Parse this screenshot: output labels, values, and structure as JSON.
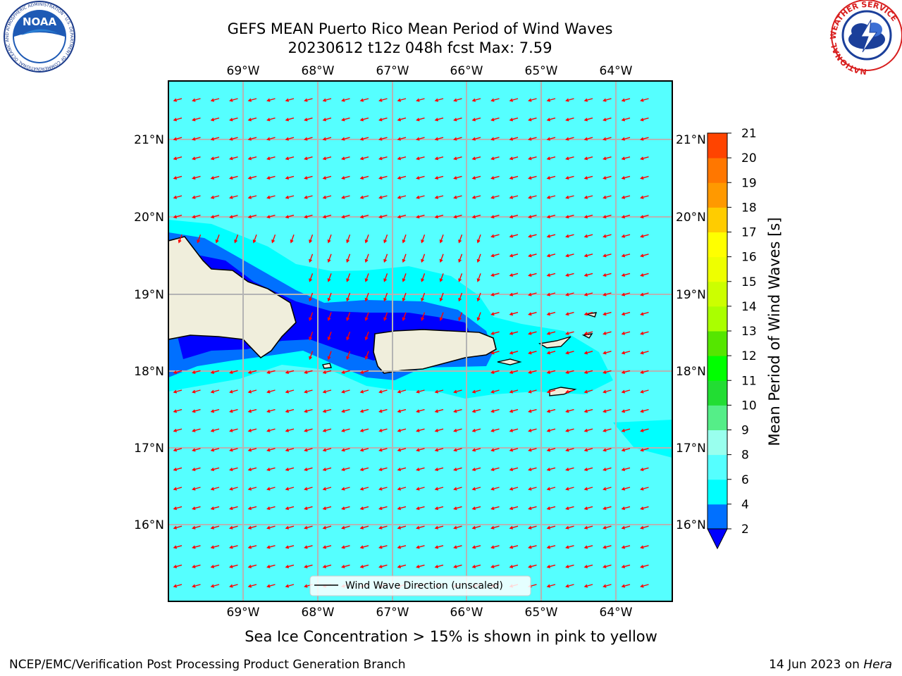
{
  "header": {
    "title_line1": "GEFS MEAN Puerto Rico Mean Period of Wind Waves",
    "title_line2": "20230612 t12z 048h fcst   Max: 7.59"
  },
  "logos": {
    "left": {
      "name": "NOAA",
      "text": "NOAA",
      "ring_text": "NATIONAL OCEANIC AND ATMOSPHERIC ADMINISTRATION · U.S. DEPARTMENT OF COMMERCE"
    },
    "right": {
      "name": "National Weather Service",
      "ring_text": "NATIONAL WEATHER SERVICE"
    }
  },
  "map": {
    "lon_labels": [
      "69°W",
      "68°W",
      "67°W",
      "66°W",
      "65°W",
      "64°W"
    ],
    "lat_labels": [
      "21°N",
      "20°N",
      "19°N",
      "18°N",
      "17°N",
      "16°N"
    ],
    "grid": true,
    "ocean_color": "#55ffff",
    "land_color": "#f0eedc",
    "arrow_color": "#ff0000",
    "legend_label": "Wind Wave Direction (unscaled)",
    "legend_position": "bottom-center"
  },
  "colorbar": {
    "label": "Mean Period of Wind Waves [s]",
    "ticks": [
      "2",
      "4",
      "6",
      "8",
      "9",
      "10",
      "11",
      "12",
      "13",
      "14",
      "15",
      "16",
      "17",
      "18",
      "19",
      "20",
      "21"
    ],
    "colors": [
      "#0000ff",
      "#0070ff",
      "#00ffff",
      "#55ffff",
      "#99ffee",
      "#55ee88",
      "#22dd33",
      "#00ff00",
      "#55e600",
      "#aaff00",
      "#ccff00",
      "#eeff00",
      "#ffff00",
      "#ffcc00",
      "#ff9900",
      "#ff7700",
      "#ff4400",
      "#ff0000"
    ],
    "extend": "min"
  },
  "notes": {
    "sea_ice": "Sea Ice Concentration > 15% is shown in pink to yellow"
  },
  "footer": {
    "left": "NCEP/EMC/Verification Post Processing Product Generation Branch",
    "right_date": "14 Jun 2023 on ",
    "right_host": "Hera"
  }
}
